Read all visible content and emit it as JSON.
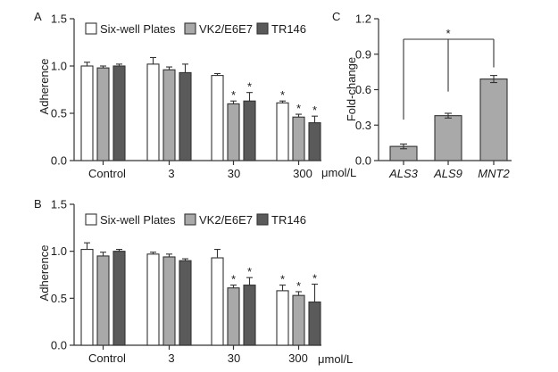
{
  "chart_data": [
    {
      "panel": "A",
      "type": "bar",
      "ylabel": "Adherence",
      "ylim": [
        0,
        1.5
      ],
      "yticks": [
        "0.0",
        "0.5",
        "1.0",
        "1.5"
      ],
      "categories": [
        "Control",
        "3",
        "30",
        "300"
      ],
      "unit": "μmol/L",
      "legend_position": "top",
      "series": [
        {
          "name": "Six-well Plates",
          "color": "#ffffff",
          "values": [
            1.0,
            1.02,
            0.9,
            0.61
          ],
          "errors": [
            0.04,
            0.07,
            0.02,
            0.02
          ],
          "stars": [
            false,
            false,
            false,
            true
          ]
        },
        {
          "name": "VK2/E6E7",
          "color": "#a9a9a9",
          "values": [
            0.98,
            0.96,
            0.6,
            0.46
          ],
          "errors": [
            0.02,
            0.03,
            0.03,
            0.03
          ],
          "stars": [
            false,
            false,
            true,
            true
          ]
        },
        {
          "name": "TR146",
          "color": "#5a5a5a",
          "values": [
            1.0,
            0.93,
            0.63,
            0.4
          ],
          "errors": [
            0.02,
            0.09,
            0.09,
            0.07
          ],
          "stars": [
            false,
            false,
            true,
            true
          ]
        }
      ]
    },
    {
      "panel": "B",
      "type": "bar",
      "ylabel": "Adherence",
      "ylim": [
        0,
        1.5
      ],
      "yticks": [
        "0.0",
        "0.5",
        "1.0",
        "1.5"
      ],
      "categories": [
        "Control",
        "3",
        "30",
        "300"
      ],
      "unit": "μmol/L",
      "legend_position": "top",
      "series": [
        {
          "name": "Six-well Plates",
          "color": "#ffffff",
          "values": [
            1.02,
            0.97,
            0.93,
            0.58
          ],
          "errors": [
            0.07,
            0.02,
            0.09,
            0.06
          ],
          "stars": [
            false,
            false,
            false,
            true
          ]
        },
        {
          "name": "VK2/E6E7",
          "color": "#a9a9a9",
          "values": [
            0.95,
            0.94,
            0.61,
            0.53
          ],
          "errors": [
            0.04,
            0.03,
            0.03,
            0.04
          ],
          "stars": [
            false,
            false,
            true,
            true
          ]
        },
        {
          "name": "TR146",
          "color": "#5a5a5a",
          "values": [
            1.0,
            0.9,
            0.64,
            0.46
          ],
          "errors": [
            0.02,
            0.02,
            0.08,
            0.19
          ],
          "stars": [
            false,
            false,
            true,
            true
          ]
        }
      ]
    },
    {
      "panel": "C",
      "type": "bar",
      "ylabel": "Fold-change",
      "ylim": [
        0,
        1.2
      ],
      "yticks": [
        "0.0",
        "0.3",
        "0.6",
        "0.9",
        "1.2"
      ],
      "categories": [
        "ALS3",
        "ALS9",
        "MNT2"
      ],
      "categories_italic": true,
      "bar_color": "#a9a9a9",
      "values": [
        0.12,
        0.38,
        0.69
      ],
      "errors": [
        0.02,
        0.02,
        0.03
      ],
      "significance": {
        "label": "*",
        "between": [
          "ALS3",
          "MNT2"
        ],
        "also_marks": "ALS9"
      }
    }
  ]
}
